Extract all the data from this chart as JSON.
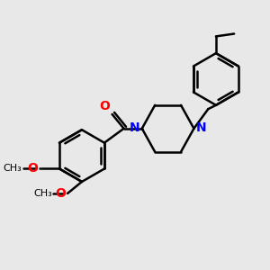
{
  "bg_color": "#e8e8e8",
  "bond_color": "#000000",
  "bond_width": 1.8,
  "N_color": "#0000ff",
  "O_color": "#ff0000",
  "font_size": 10,
  "fig_width": 3.0,
  "fig_height": 3.0,
  "dpi": 100,
  "xlim": [
    0,
    10
  ],
  "ylim": [
    0,
    10
  ]
}
